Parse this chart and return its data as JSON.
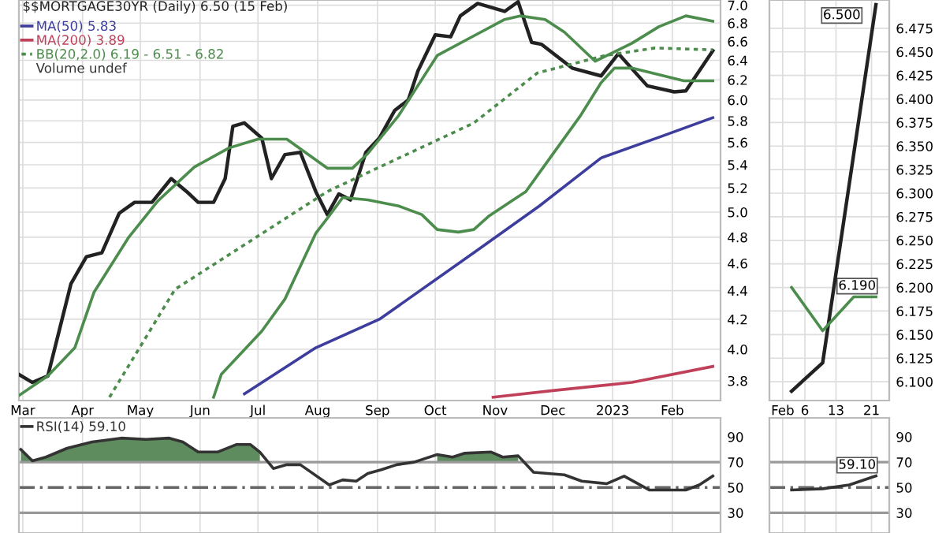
{
  "chart_data": [
    {
      "type": "line",
      "title": "$$MORTGAGE30YR (Daily) 6.50 (15 Feb)",
      "log": true,
      "grid": true,
      "legend": "top left",
      "annotations": [
        "Volume undef"
      ],
      "xlim": [
        "2022-02-27",
        "2023-02-26"
      ],
      "xticks": [
        {
          "value": "2022-03-01",
          "label": "Mar"
        },
        {
          "value": "2022-04-01",
          "label": "Apr"
        },
        {
          "value": "2022-05-01",
          "label": "May"
        },
        {
          "value": "2022-06-01",
          "label": "Jun"
        },
        {
          "value": "2022-07-01",
          "label": "Jul"
        },
        {
          "value": "2022-08-01",
          "label": "Aug"
        },
        {
          "value": "2022-09-01",
          "label": "Sep"
        },
        {
          "value": "2022-10-01",
          "label": "Oct"
        },
        {
          "value": "2022-11-01",
          "label": "Nov"
        },
        {
          "value": "2022-12-01",
          "label": "Dec"
        },
        {
          "value": "2023-01-01",
          "label": "2023"
        },
        {
          "value": "2023-02-01",
          "label": "Feb"
        }
      ],
      "ylim": [
        3.68,
        7.06
      ],
      "yticks": [
        3.8,
        {
          "value": 4,
          "label": "4.0"
        },
        4.2,
        4.4,
        4.6,
        4.8,
        {
          "value": 5,
          "label": "5.0"
        },
        5.2,
        5.4,
        5.6,
        5.8,
        {
          "value": 6,
          "label": "6.0"
        },
        6.2,
        6.4,
        6.6,
        6.8,
        {
          "value": 7,
          "label": "7.0"
        }
      ],
      "series": [
        {
          "color": "#222222",
          "x": [
            "2022-02-27",
            "2022-03-06",
            "2022-03-14",
            "2022-03-26",
            "2022-04-03",
            "2022-04-11",
            "2022-04-20",
            "2022-04-28",
            "2022-05-07",
            "2022-05-17",
            "2022-05-25",
            "2022-05-31",
            "2022-06-08",
            "2022-06-14",
            "2022-06-18",
            "2022-06-24",
            "2022-07-03",
            "2022-07-08",
            "2022-07-15",
            "2022-07-23",
            "2022-07-31",
            "2022-08-06",
            "2022-08-12",
            "2022-08-18",
            "2022-08-26",
            "2022-09-02",
            "2022-09-10",
            "2022-09-17",
            "2022-09-22",
            "2022-10-01",
            "2022-10-09",
            "2022-10-14",
            "2022-10-23",
            "2022-11-06",
            "2022-11-13",
            "2022-11-20",
            "2022-11-25",
            "2022-12-11",
            "2022-12-26",
            "2023-01-04",
            "2023-01-19",
            "2023-02-02",
            "2023-02-08",
            "2023-02-22"
          ],
          "values": [
            3.84,
            3.79,
            3.83,
            4.45,
            4.65,
            4.68,
            4.99,
            5.08,
            5.08,
            5.28,
            5.17,
            5.08,
            5.08,
            5.28,
            5.75,
            5.78,
            5.64,
            5.28,
            5.49,
            5.51,
            5.17,
            4.98,
            5.15,
            5.1,
            5.51,
            5.64,
            5.9,
            6.0,
            6.29,
            6.67,
            6.65,
            6.88,
            7.02,
            6.93,
            7.04,
            6.59,
            6.57,
            6.32,
            6.24,
            6.47,
            6.14,
            6.08,
            6.09,
            6.5
          ]
        },
        {
          "name": "MA(50) 5.83",
          "color": "#3d3d9e",
          "x": [
            "2022-06-24",
            "2022-07-31",
            "2022-09-02",
            "2022-10-21",
            "2022-11-24",
            "2022-12-26",
            "2023-01-27",
            "2023-02-22"
          ],
          "values": [
            3.72,
            4.01,
            4.2,
            4.68,
            5.05,
            5.46,
            5.66,
            5.83
          ]
        },
        {
          "name": "MA(200) 3.89",
          "color": "#c0405a",
          "x": [
            "2022-10-31",
            "2022-12-01",
            "2023-01-11",
            "2023-02-22"
          ],
          "values": [
            3.7,
            3.74,
            3.79,
            3.89
          ]
        },
        {
          "name": "BB(20,2.0) 6.19 - 6.51 - 6.82",
          "color": "#4c8c4c",
          "line_style": "dotted",
          "x": [
            "2022-04-15",
            "2022-05-19",
            "2022-06-26",
            "2022-08-06",
            "2022-10-21",
            "2022-11-23",
            "2022-12-28",
            "2023-01-23",
            "2023-02-22"
          ],
          "values": [
            3.7,
            4.41,
            4.76,
            5.17,
            5.78,
            6.27,
            6.45,
            6.53,
            6.51
          ]
        },
        {
          "color": "#4c8c4c",
          "x": [
            "2022-02-27",
            "2022-03-14",
            "2022-03-28",
            "2022-04-07",
            "2022-04-25",
            "2022-05-10",
            "2022-05-29",
            "2022-06-16",
            "2022-07-01",
            "2022-07-16",
            "2022-08-06",
            "2022-08-19",
            "2022-08-27",
            "2022-09-12",
            "2022-10-02",
            "2022-10-21",
            "2022-11-06",
            "2022-11-14",
            "2022-11-27",
            "2022-12-07",
            "2022-12-23",
            "2023-01-11",
            "2023-01-25",
            "2023-02-08",
            "2023-02-22"
          ],
          "values": [
            3.71,
            3.83,
            4.01,
            4.39,
            4.8,
            5.09,
            5.38,
            5.55,
            5.63,
            5.63,
            5.37,
            5.37,
            5.5,
            5.85,
            6.45,
            6.66,
            6.84,
            6.88,
            6.84,
            6.7,
            6.39,
            6.58,
            6.76,
            6.88,
            6.82
          ]
        },
        {
          "color": "#4c8c4c",
          "x": [
            "2022-06-08",
            "2022-06-12",
            "2022-07-03",
            "2022-07-15",
            "2022-07-31",
            "2022-08-07",
            "2022-08-14",
            "2022-08-27",
            "2022-09-12",
            "2022-09-24",
            "2022-10-02",
            "2022-10-13",
            "2022-10-21",
            "2022-10-29",
            "2022-11-17",
            "2022-11-24",
            "2022-12-15",
            "2022-12-26",
            "2023-01-02",
            "2023-01-11",
            "2023-02-07",
            "2023-02-22"
          ],
          "values": [
            3.7,
            3.84,
            4.12,
            4.34,
            4.83,
            4.97,
            5.12,
            5.1,
            5.05,
            4.98,
            4.86,
            4.84,
            4.86,
            4.97,
            5.17,
            5.33,
            5.84,
            6.17,
            6.32,
            6.32,
            6.19,
            6.19
          ]
        }
      ]
    },
    {
      "type": "line",
      "grid": true,
      "annotations": [
        {
          "text": "6.500",
          "x": "2023-02-22",
          "y": 6.5
        },
        {
          "text": "6.190",
          "x": "2023-02-22",
          "y": 6.19
        }
      ],
      "xlim": [
        "2023-01-29",
        "2023-02-25"
      ],
      "xticks": [
        {
          "value": "2023-02-01",
          "label": "Feb"
        },
        {
          "value": "2023-02-06",
          "label": "6"
        },
        {
          "value": "2023-02-13",
          "label": "13"
        },
        {
          "value": "2023-02-21",
          "label": "21"
        }
      ],
      "ylim": [
        6.08,
        6.505
      ],
      "yticks": [
        {
          "value": 6.1,
          "label": "6.100"
        },
        {
          "value": 6.125,
          "label": "6.125"
        },
        {
          "value": 6.15,
          "label": "6.150"
        },
        {
          "value": 6.175,
          "label": "6.175"
        },
        {
          "value": 6.2,
          "label": "6.200"
        },
        {
          "value": 6.225,
          "label": "6.225"
        },
        {
          "value": 6.25,
          "label": "6.250"
        },
        {
          "value": 6.275,
          "label": "6.275"
        },
        {
          "value": 6.3,
          "label": "6.300"
        },
        {
          "value": 6.325,
          "label": "6.325"
        },
        {
          "value": 6.35,
          "label": "6.350"
        },
        {
          "value": 6.375,
          "label": "6.375"
        },
        {
          "value": 6.4,
          "label": "6.400"
        },
        {
          "value": 6.425,
          "label": "6.425"
        },
        {
          "value": 6.45,
          "label": "6.450"
        },
        {
          "value": 6.475,
          "label": "6.475"
        }
      ],
      "series": [
        {
          "color": "#222222",
          "x": [
            "2023-02-03",
            "2023-02-10",
            "2023-02-22"
          ],
          "values": [
            6.09,
            6.12,
            6.5
          ]
        },
        {
          "color": "#4c8c4c",
          "x": [
            "2023-02-03",
            "2023-02-10",
            "2023-02-17",
            "2023-02-22"
          ],
          "values": [
            6.2,
            6.154,
            6.19,
            6.19
          ]
        }
      ]
    },
    {
      "type": "line",
      "grid": "x",
      "legend": "top left",
      "tick_labels": "y",
      "xlim": [
        "2022-02-27",
        "2023-02-26"
      ],
      "xticks": [
        {
          "value": "2022-03-01",
          "label": null
        },
        {
          "value": "2022-04-01",
          "label": null
        },
        {
          "value": "2022-05-01",
          "label": null
        },
        {
          "value": "2022-06-01",
          "label": null
        },
        {
          "value": "2022-07-01",
          "label": null
        },
        {
          "value": "2022-08-01",
          "label": null
        },
        {
          "value": "2022-09-01",
          "label": null
        },
        {
          "value": "2022-10-01",
          "label": null
        },
        {
          "value": "2022-11-01",
          "label": null
        },
        {
          "value": "2022-12-01",
          "label": null
        },
        {
          "value": "2023-01-01",
          "label": null
        },
        {
          "value": "2023-02-01",
          "label": null
        }
      ],
      "ylim": [
        14,
        105
      ],
      "yticks": [
        30,
        50,
        70,
        90
      ],
      "ref_lines": [
        {
          "axis": "y",
          "value": 70,
          "color": "#999999",
          "line_style": "solid"
        },
        {
          "axis": "y",
          "value": 50,
          "color": "#666666",
          "line_style": "dashed"
        },
        {
          "axis": "y",
          "value": 30,
          "color": "#999999",
          "line_style": "solid"
        }
      ],
      "series": [
        {
          "name": "RSI(14) 59.10",
          "color": "#333333",
          "x": [
            "2022-02-28",
            "2022-03-06",
            "2022-03-13",
            "2022-03-24",
            "2022-04-06",
            "2022-04-21",
            "2022-05-04",
            "2022-05-16",
            "2022-05-23",
            "2022-05-31",
            "2022-06-10",
            "2022-06-20",
            "2022-06-27",
            "2022-07-02",
            "2022-07-09",
            "2022-07-16",
            "2022-07-23",
            "2022-08-07",
            "2022-08-14",
            "2022-08-21",
            "2022-08-27",
            "2022-09-03",
            "2022-09-11",
            "2022-09-20",
            "2022-10-02",
            "2022-10-10",
            "2022-10-16",
            "2022-10-30",
            "2022-11-05",
            "2022-11-13",
            "2022-11-21",
            "2022-12-07",
            "2022-12-16",
            "2022-12-29",
            "2023-01-07",
            "2023-01-20",
            "2023-01-30",
            "2023-02-08",
            "2023-02-15",
            "2023-02-22"
          ],
          "values": [
            80,
            71,
            74,
            81,
            86,
            89,
            88,
            89,
            86,
            78,
            78,
            84,
            84,
            78,
            65,
            68,
            68,
            52,
            56,
            55,
            61,
            64,
            68,
            70,
            76,
            74,
            77,
            78,
            74,
            75,
            62,
            60,
            55,
            53,
            59,
            48,
            48,
            48,
            52,
            59.1
          ],
          "upper": [
            80,
            71,
            74,
            81,
            86,
            89,
            88,
            89,
            86,
            78,
            78,
            84,
            84,
            78,
            null,
            null,
            null,
            null,
            null,
            null,
            null,
            null,
            null,
            null,
            76,
            74,
            77,
            78,
            74,
            75,
            null,
            null,
            null,
            null,
            null,
            null,
            null,
            null,
            null,
            null
          ],
          "lower": [
            70,
            70,
            70,
            70,
            70,
            70,
            70,
            70,
            70,
            70,
            70,
            70,
            70,
            70,
            null,
            null,
            null,
            null,
            null,
            null,
            null,
            null,
            null,
            null,
            70,
            70,
            70,
            70,
            70,
            70,
            null,
            null,
            null,
            null,
            null,
            null,
            null,
            null,
            null,
            null
          ]
        }
      ]
    },
    {
      "type": "line",
      "grid": "x",
      "tick_labels": "y",
      "annotations": [
        {
          "text": "59.10",
          "x": "2023-02-22",
          "y": 59.1
        }
      ],
      "xlim": [
        "2023-01-29",
        "2023-02-25"
      ],
      "xticks": [
        {
          "value": "2023-02-01",
          "label": null
        },
        {
          "value": "2023-02-06",
          "label": null
        },
        {
          "value": "2023-02-13",
          "label": null
        },
        {
          "value": "2023-02-21",
          "label": null
        }
      ],
      "ylim": [
        14,
        105
      ],
      "yticks": [
        30,
        50,
        70,
        90
      ],
      "ref_lines": [
        {
          "axis": "y",
          "value": 70,
          "color": "#999999",
          "line_style": "solid"
        },
        {
          "axis": "y",
          "value": 50,
          "color": "#666666",
          "line_style": "dashed"
        },
        {
          "axis": "y",
          "value": 30,
          "color": "#999999",
          "line_style": "solid"
        }
      ],
      "series": [
        {
          "color": "#333333",
          "x": [
            "2023-02-03",
            "2023-02-10",
            "2023-02-16",
            "2023-02-22"
          ],
          "values": [
            48,
            49,
            52,
            59.1
          ]
        }
      ]
    }
  ]
}
